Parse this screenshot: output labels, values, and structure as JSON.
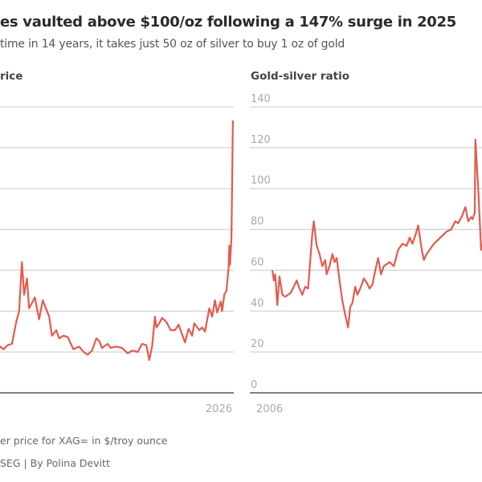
{
  "title": "es vaulted above $100/oz following a 147% surge in 2025",
  "subtitle": "time in 14 years, it takes just 50 oz of silver to buy 1 oz of gold",
  "footnote": "er price for XAG= in $/troy ounce",
  "source": "SEG | By Polina Devitt",
  "colors": {
    "line": "#e55a4e",
    "grid": "#d3d3d3",
    "axis": "#555555",
    "tick_text": "#aaaaaa"
  },
  "chart_data": [
    {
      "type": "line",
      "title": "rice",
      "x_ticks": [
        "2026"
      ],
      "xlim": [
        2006,
        2026.1
      ],
      "ylim": [
        0,
        105
      ],
      "y_gridlines": [
        15,
        30,
        45,
        60,
        75,
        90,
        105
      ],
      "grid": true,
      "series": [
        {
          "values": [
            [
              2006.0,
              9
            ],
            [
              2006.4,
              14
            ],
            [
              2006.8,
              12
            ],
            [
              2007.3,
              13.5
            ],
            [
              2007.9,
              14.5
            ],
            [
              2008.2,
              20
            ],
            [
              2008.8,
              9.5
            ],
            [
              2009.3,
              13
            ],
            [
              2009.8,
              17
            ],
            [
              2010.0,
              16
            ],
            [
              2010.3,
              17.5
            ],
            [
              2010.6,
              18
            ],
            [
              2010.9,
              26
            ],
            [
              2011.1,
              30
            ],
            [
              2011.3,
              48
            ],
            [
              2011.45,
              36
            ],
            [
              2011.65,
              42
            ],
            [
              2011.8,
              31
            ],
            [
              2012.0,
              33
            ],
            [
              2012.2,
              35
            ],
            [
              2012.5,
              27
            ],
            [
              2012.75,
              34
            ],
            [
              2012.9,
              32
            ],
            [
              2013.2,
              28
            ],
            [
              2013.4,
              21
            ],
            [
              2013.7,
              23
            ],
            [
              2013.9,
              20
            ],
            [
              2014.2,
              21
            ],
            [
              2014.5,
              20.5
            ],
            [
              2014.9,
              16
            ],
            [
              2015.3,
              17
            ],
            [
              2015.6,
              15
            ],
            [
              2015.9,
              14
            ],
            [
              2016.2,
              15.5
            ],
            [
              2016.5,
              20
            ],
            [
              2016.7,
              19
            ],
            [
              2016.9,
              16.5
            ],
            [
              2017.3,
              18
            ],
            [
              2017.5,
              16.5
            ],
            [
              2017.9,
              17
            ],
            [
              2018.3,
              16.5
            ],
            [
              2018.7,
              14.5
            ],
            [
              2019.0,
              15.5
            ],
            [
              2019.4,
              15
            ],
            [
              2019.7,
              18
            ],
            [
              2020.0,
              17.5
            ],
            [
              2020.2,
              12
            ],
            [
              2020.4,
              17
            ],
            [
              2020.6,
              28
            ],
            [
              2020.7,
              24
            ],
            [
              2020.9,
              25.5
            ],
            [
              2021.1,
              27.5
            ],
            [
              2021.4,
              26
            ],
            [
              2021.7,
              23
            ],
            [
              2022.0,
              23
            ],
            [
              2022.25,
              25
            ],
            [
              2022.7,
              18.5
            ],
            [
              2022.95,
              23.5
            ],
            [
              2023.2,
              21
            ],
            [
              2023.35,
              25.5
            ],
            [
              2023.7,
              23
            ],
            [
              2023.9,
              24
            ],
            [
              2024.1,
              22.5
            ],
            [
              2024.4,
              31
            ],
            [
              2024.6,
              28
            ],
            [
              2024.8,
              34
            ],
            [
              2024.95,
              29.5
            ],
            [
              2025.2,
              33.5
            ],
            [
              2025.3,
              30
            ],
            [
              2025.45,
              36
            ],
            [
              2025.6,
              37.5
            ],
            [
              2025.75,
              46
            ],
            [
              2025.8,
              54
            ],
            [
              2025.85,
              47
            ],
            [
              2025.95,
              57
            ],
            [
              2026.0,
              78
            ],
            [
              2026.05,
              100
            ]
          ]
        }
      ]
    },
    {
      "type": "line",
      "title": "Gold-silver ratio",
      "x_ticks": [
        "2006"
      ],
      "xlim": [
        2006,
        2026.1
      ],
      "ylim": [
        0,
        140
      ],
      "y_ticks": [
        "0",
        "20",
        "40",
        "60",
        "80",
        "100",
        "120",
        "140"
      ],
      "grid": true,
      "series": [
        {
          "values": [
            [
              2006.0,
              60
            ],
            [
              2006.1,
              55
            ],
            [
              2006.2,
              58
            ],
            [
              2006.35,
              43
            ],
            [
              2006.5,
              57
            ],
            [
              2006.7,
              48
            ],
            [
              2006.9,
              47
            ],
            [
              2007.1,
              48
            ],
            [
              2007.3,
              49
            ],
            [
              2007.5,
              52
            ],
            [
              2007.7,
              55
            ],
            [
              2007.9,
              51
            ],
            [
              2008.1,
              48
            ],
            [
              2008.3,
              52
            ],
            [
              2008.5,
              51
            ],
            [
              2008.8,
              78
            ],
            [
              2008.9,
              84
            ],
            [
              2009.1,
              72
            ],
            [
              2009.3,
              68
            ],
            [
              2009.5,
              62
            ],
            [
              2009.7,
              65
            ],
            [
              2009.8,
              58
            ],
            [
              2010.0,
              62
            ],
            [
              2010.2,
              68
            ],
            [
              2010.35,
              64
            ],
            [
              2010.5,
              66
            ],
            [
              2010.7,
              55
            ],
            [
              2010.9,
              45
            ],
            [
              2011.1,
              38
            ],
            [
              2011.3,
              32
            ],
            [
              2011.45,
              42
            ],
            [
              2011.6,
              44
            ],
            [
              2011.8,
              52
            ],
            [
              2011.95,
              48
            ],
            [
              2012.2,
              52
            ],
            [
              2012.4,
              56
            ],
            [
              2012.6,
              54
            ],
            [
              2012.8,
              51
            ],
            [
              2013.0,
              53
            ],
            [
              2013.2,
              60
            ],
            [
              2013.4,
              66
            ],
            [
              2013.6,
              58
            ],
            [
              2013.8,
              62
            ],
            [
              2014.0,
              63
            ],
            [
              2014.2,
              64
            ],
            [
              2014.5,
              62
            ],
            [
              2014.8,
              70
            ],
            [
              2015.1,
              73
            ],
            [
              2015.4,
              72
            ],
            [
              2015.6,
              76
            ],
            [
              2015.8,
              73
            ],
            [
              2016.0,
              77
            ],
            [
              2016.2,
              82
            ],
            [
              2016.45,
              70
            ],
            [
              2016.6,
              65
            ],
            [
              2016.8,
              68
            ],
            [
              2017.0,
              70
            ],
            [
              2017.3,
              73
            ],
            [
              2017.6,
              75
            ],
            [
              2017.9,
              77
            ],
            [
              2018.2,
              79
            ],
            [
              2018.5,
              80
            ],
            [
              2018.8,
              84
            ],
            [
              2019.0,
              83
            ],
            [
              2019.3,
              87
            ],
            [
              2019.5,
              91
            ],
            [
              2019.7,
              84
            ],
            [
              2019.9,
              86
            ],
            [
              2020.0,
              85
            ],
            [
              2020.15,
              88
            ],
            [
              2020.2,
              124
            ],
            [
              2020.3,
              112
            ],
            [
              2020.4,
              100
            ],
            [
              2020.6,
              70
            ],
            [
              2020.8,
              75
            ],
            [
              2021.0,
              70
            ],
            [
              2021.5,
              69
            ],
            [
              2022.0,
              80
            ],
            [
              2022.5,
              85
            ],
            [
              2022.8,
              90
            ],
            [
              2023.2,
              83
            ],
            [
              2023.7,
              82
            ],
            [
              2024.0,
              88
            ],
            [
              2024.4,
              78
            ],
            [
              2024.9,
              86
            ],
            [
              2025.3,
              102
            ],
            [
              2025.5,
              92
            ],
            [
              2025.7,
              86
            ],
            [
              2025.85,
              78
            ],
            [
              2025.95,
              67
            ],
            [
              2026.05,
              50
            ]
          ]
        }
      ]
    }
  ]
}
